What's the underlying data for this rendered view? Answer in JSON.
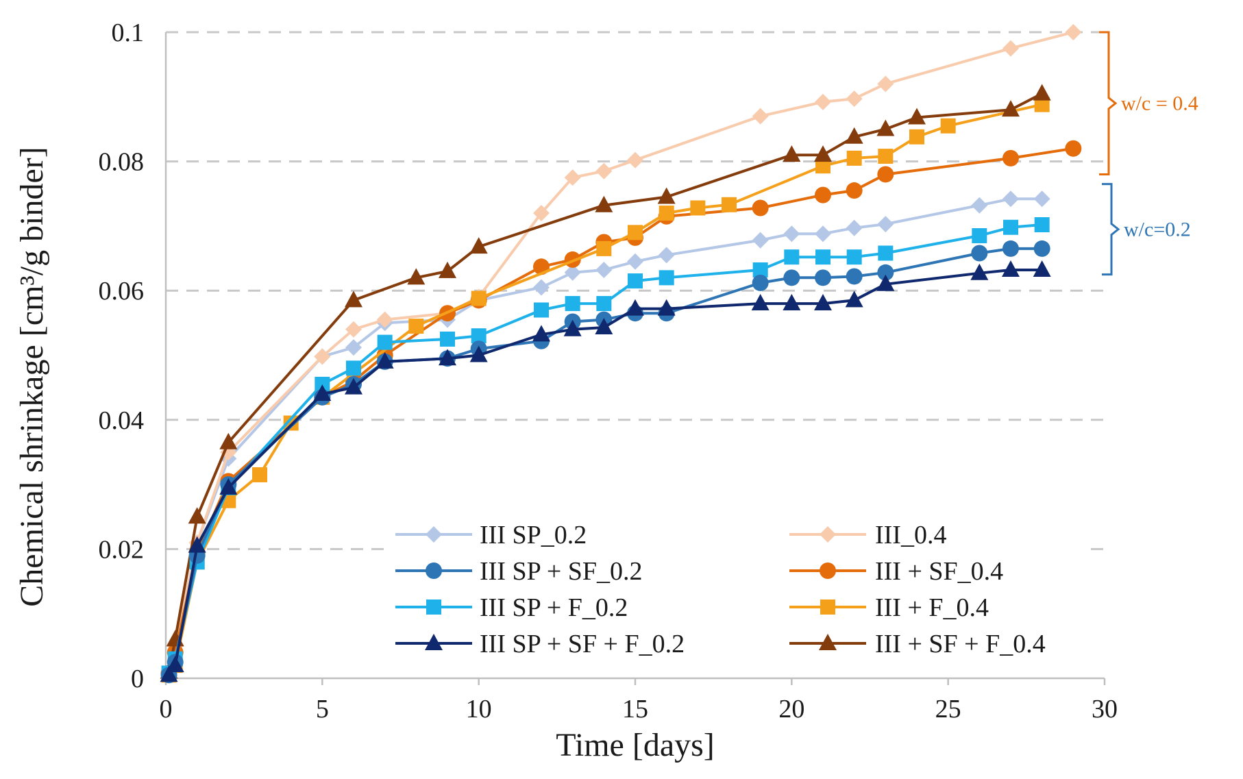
{
  "chart_data": {
    "type": "line",
    "title": "",
    "xlabel": "Time [days]",
    "ylabel": "Chemical shrinkage [cm³/g binder]",
    "xlim": [
      0,
      30
    ],
    "ylim": [
      0,
      0.1
    ],
    "xticks": [
      0,
      5,
      10,
      15,
      20,
      25,
      30
    ],
    "yticks": [
      0,
      0.02,
      0.04,
      0.06,
      0.08,
      0.1
    ],
    "xtick_labels": [
      "0",
      "5",
      "10",
      "15",
      "20",
      "25",
      "30"
    ],
    "ytick_labels": [
      "0",
      "0.02",
      "0.04",
      "0.06",
      "0.08",
      "0.1"
    ],
    "grid": "horizontal dashed",
    "legend_position": "bottom-right, two columns",
    "series": [
      {
        "name": "III SP_0.2",
        "color": "#b4c7e7",
        "marker": "diamond",
        "x": [
          0.1,
          0.3,
          1,
          2,
          5,
          6,
          7,
          9,
          10,
          12,
          13,
          14,
          15,
          16,
          19,
          20,
          21,
          22,
          23,
          26,
          27,
          28
        ],
        "y": [
          0.001,
          0.005,
          0.021,
          0.034,
          0.0498,
          0.0512,
          0.055,
          0.0555,
          0.0585,
          0.0605,
          0.0628,
          0.0632,
          0.0645,
          0.0655,
          0.0678,
          0.0688,
          0.0688,
          0.0697,
          0.0703,
          0.0732,
          0.0742,
          0.0742
        ]
      },
      {
        "name": "III SP + SF_0.2",
        "color": "#2e75b6",
        "marker": "circle",
        "x": [
          0.1,
          0.3,
          1,
          2,
          5,
          6,
          7,
          9,
          10,
          12,
          13,
          14,
          15,
          16,
          19,
          20,
          21,
          22,
          23,
          26,
          27,
          28
        ],
        "y": [
          0.0005,
          0.0025,
          0.019,
          0.03,
          0.0435,
          0.0455,
          0.049,
          0.0495,
          0.051,
          0.0522,
          0.0552,
          0.0555,
          0.0565,
          0.0565,
          0.0612,
          0.062,
          0.062,
          0.0622,
          0.0628,
          0.0658,
          0.0665,
          0.0665
        ]
      },
      {
        "name": "III SP + F_0.2",
        "color": "#1eb1ea",
        "marker": "square",
        "x": [
          0.1,
          0.3,
          1,
          2,
          5,
          6,
          7,
          9,
          10,
          12,
          13,
          14,
          15,
          16,
          19,
          20,
          21,
          22,
          23,
          26,
          27,
          28
        ],
        "y": [
          0.0008,
          0.003,
          0.018,
          0.0295,
          0.0455,
          0.048,
          0.052,
          0.0525,
          0.053,
          0.057,
          0.058,
          0.058,
          0.0615,
          0.062,
          0.0632,
          0.0652,
          0.0652,
          0.0652,
          0.0658,
          0.0685,
          0.0698,
          0.0702
        ]
      },
      {
        "name": "III SP + SF + F_0.2",
        "color": "#10286e",
        "marker": "triangle",
        "x": [
          0.1,
          0.3,
          1,
          2,
          5,
          6,
          7,
          9,
          10,
          12,
          13,
          14,
          15,
          16,
          19,
          20,
          21,
          22,
          23,
          26,
          27,
          28
        ],
        "y": [
          0.0005,
          0.002,
          0.0205,
          0.0295,
          0.044,
          0.045,
          0.049,
          0.0495,
          0.05,
          0.0532,
          0.054,
          0.0543,
          0.0572,
          0.0572,
          0.058,
          0.058,
          0.058,
          0.0585,
          0.061,
          0.0627,
          0.0632,
          0.0632
        ]
      },
      {
        "name": "III_0.4",
        "color": "#f8cbad",
        "marker": "diamond",
        "x": [
          0.1,
          0.3,
          1,
          2,
          5,
          6,
          7,
          9,
          10,
          12,
          13,
          14,
          15,
          19,
          21,
          22,
          23,
          27,
          29
        ],
        "y": [
          0.001,
          0.005,
          0.021,
          0.035,
          0.0498,
          0.054,
          0.0555,
          0.0565,
          0.059,
          0.072,
          0.0775,
          0.0785,
          0.0802,
          0.087,
          0.0892,
          0.0897,
          0.092,
          0.0975,
          0.1
        ]
      },
      {
        "name": "III + SF_0.4",
        "color": "#e46c0a",
        "marker": "circle",
        "x": [
          0.1,
          0.3,
          1,
          2,
          5,
          6,
          7,
          9,
          10,
          12,
          13,
          14,
          15,
          16,
          19,
          21,
          22,
          23,
          27,
          29
        ],
        "y": [
          0.0008,
          0.004,
          0.0195,
          0.0305,
          0.0435,
          0.046,
          0.05,
          0.0565,
          0.0585,
          0.0637,
          0.0648,
          0.0675,
          0.0682,
          0.0715,
          0.0728,
          0.0748,
          0.0755,
          0.078,
          0.0805,
          0.082
        ]
      },
      {
        "name": "III + F_0.4",
        "color": "#f5a01a",
        "marker": "square",
        "x": [
          0.1,
          0.3,
          1,
          2,
          3,
          4,
          5,
          8,
          10,
          14,
          15,
          16,
          17,
          18,
          21,
          22,
          23,
          24,
          25,
          28
        ],
        "y": [
          0.0005,
          0.002,
          0.018,
          0.0275,
          0.0315,
          0.0395,
          0.0435,
          0.0545,
          0.0588,
          0.0665,
          0.069,
          0.072,
          0.0728,
          0.0733,
          0.0793,
          0.0805,
          0.0808,
          0.0838,
          0.0855,
          0.0888
        ]
      },
      {
        "name": "III + SF + F_0.4",
        "color": "#843c0c",
        "marker": "triangle",
        "x": [
          0.1,
          0.3,
          1,
          2,
          6,
          8,
          9,
          10,
          14,
          16,
          20,
          21,
          22,
          23,
          24,
          27,
          28
        ],
        "y": [
          0.001,
          0.006,
          0.025,
          0.0365,
          0.0585,
          0.062,
          0.063,
          0.0668,
          0.0732,
          0.0745,
          0.081,
          0.081,
          0.0838,
          0.085,
          0.0868,
          0.088,
          0.0905
        ]
      }
    ],
    "annotations": [
      {
        "label": "w/c = 0.4",
        "color": "#e46c0a",
        "y_range": [
          0.078,
          0.1
        ]
      },
      {
        "label": "w/c=0.2",
        "color": "#2e75b6",
        "y_range": [
          0.0625,
          0.0765
        ]
      }
    ]
  }
}
